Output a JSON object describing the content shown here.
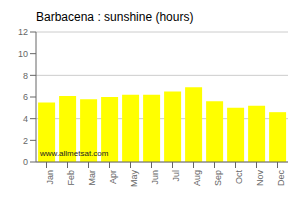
{
  "chart_data": {
    "type": "bar",
    "title": "Barbacena : sunshine (hours)",
    "categories": [
      "Jan",
      "Feb",
      "Mar",
      "Apr",
      "May",
      "Jun",
      "Jul",
      "Aug",
      "Sep",
      "Oct",
      "Nov",
      "Dec"
    ],
    "values": [
      5.5,
      6.1,
      5.8,
      6.0,
      6.2,
      6.2,
      6.5,
      6.9,
      5.6,
      5.0,
      5.2,
      4.6
    ],
    "color": "#ffff00",
    "ylim": [
      0,
      12
    ],
    "yticks": [
      0,
      2,
      4,
      6,
      8,
      10,
      12
    ],
    "grid": true,
    "annotations": [
      "www.allmetsat.com"
    ]
  }
}
